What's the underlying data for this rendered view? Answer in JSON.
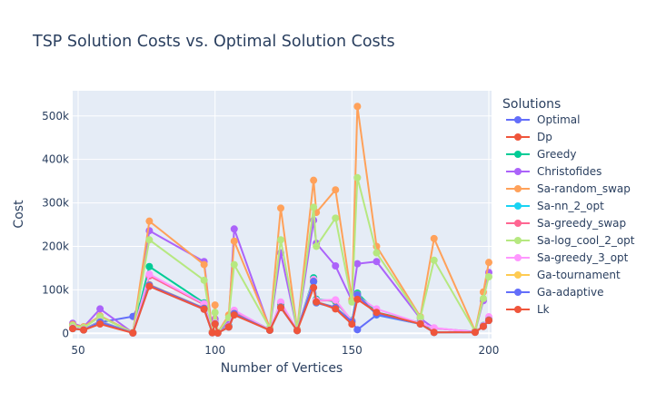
{
  "chart_data": {
    "type": "line",
    "title": "TSP Solution Costs vs. Optimal Solution Costs",
    "xlabel": "Number of Vertices",
    "ylabel": "Cost",
    "xlim": [
      48,
      201
    ],
    "ylim": [
      -12000,
      558000
    ],
    "x_ticks": [
      50,
      100,
      150,
      200
    ],
    "y_ticks": [
      0,
      100000,
      200000,
      300000,
      400000,
      500000
    ],
    "y_tick_labels": [
      "0",
      "100k",
      "200k",
      "300k",
      "400k",
      "500k"
    ],
    "grid": true,
    "legend": {
      "title": "Solutions",
      "placement": "right"
    },
    "x": [
      48,
      52,
      58,
      70,
      76,
      96,
      99,
      100,
      101,
      105,
      107,
      120,
      124,
      130,
      136,
      137,
      144,
      150,
      152,
      159,
      175,
      180,
      195,
      198,
      200
    ],
    "series": [
      {
        "name": "Optimal",
        "color": "#636efa",
        "values": [
          10628,
          7542,
          25395,
          38673,
          108159,
          55209,
          1211,
          21282,
          629,
          14379,
          44303,
          6942,
          59030,
          6110,
          118282,
          69853,
          58537,
          26130,
          8179,
          42080,
          21407,
          1950,
          2323,
          15780,
          29368
        ]
      },
      {
        "name": "Dp",
        "color": "#ef553b",
        "values": [
          null,
          null,
          null,
          null,
          null,
          null,
          null,
          null,
          null,
          null,
          null,
          null,
          null,
          null,
          null,
          null,
          null,
          null,
          null,
          null,
          null,
          null,
          null,
          null,
          null
        ]
      },
      {
        "name": "Greedy",
        "color": "#00cc96",
        "values": [
          12012,
          8982,
          27807,
          790,
          153461,
          69853,
          1400,
          25405,
          739,
          17470,
          51680,
          8218,
          66185,
          6986,
          127630,
          78412,
          73612,
          29020,
          92468,
          48106,
          24540,
          2150,
          2633,
          18010,
          33700
        ]
      },
      {
        "name": "Christofides",
        "color": "#ab63fa",
        "values": [
          23000,
          14500,
          56000,
          1200,
          236000,
          165000,
          2600,
          33000,
          1100,
          28000,
          240000,
          11500,
          185000,
          8200,
          260000,
          207000,
          155000,
          75000,
          160000,
          165000,
          34000,
          11500,
          3700,
          75000,
          140000
        ]
      },
      {
        "name": "Sa-random_swap",
        "color": "#ffa15a",
        "values": [
          20000,
          15000,
          40000,
          1700,
          258000,
          158000,
          4000,
          65000,
          1400,
          42000,
          212000,
          13000,
          288000,
          9500,
          352000,
          278000,
          330000,
          78000,
          522000,
          200000,
          38000,
          218000,
          5500,
          95000,
          163000
        ]
      },
      {
        "name": "Sa-nn_2_opt",
        "color": "#19d3f3",
        "values": [
          10700,
          7600,
          25600,
          790,
          110000,
          57000,
          1250,
          21500,
          640,
          14800,
          45000,
          7000,
          60000,
          6200,
          119000,
          71000,
          59000,
          26500,
          88000,
          43000,
          21700,
          1980,
          2400,
          16000,
          30000
        ]
      },
      {
        "name": "Sa-greedy_swap",
        "color": "#ff6692",
        "values": [
          11500,
          8300,
          26500,
          800,
          132000,
          66000,
          1320,
          23000,
          680,
          15500,
          48000,
          7500,
          71000,
          6500,
          122000,
          75000,
          76000,
          27500,
          84000,
          45500,
          22500,
          12000,
          2500,
          17000,
          32000
        ]
      },
      {
        "name": "Sa-log_cool_2_opt",
        "color": "#b6e880",
        "values": [
          18000,
          13000,
          38000,
          1500,
          215000,
          122000,
          3200,
          48000,
          1200,
          36000,
          158000,
          12000,
          215000,
          8800,
          290000,
          200000,
          265000,
          72000,
          358000,
          185000,
          36000,
          168000,
          4500,
          80000,
          130000
        ]
      },
      {
        "name": "Sa-greedy_3_opt",
        "color": "#ff97ff",
        "values": [
          12000,
          8600,
          27000,
          820,
          136000,
          68000,
          1350,
          23500,
          690,
          16000,
          53000,
          7700,
          72000,
          6700,
          124000,
          76000,
          77000,
          28000,
          85000,
          56000,
          23000,
          12500,
          2550,
          17500,
          38000
        ]
      },
      {
        "name": "Ga-tournament",
        "color": "#fecb52",
        "values": [
          11000,
          7900,
          26000,
          800,
          112000,
          58000,
          1260,
          22000,
          650,
          15000,
          46000,
          7100,
          61000,
          6300,
          120000,
          72000,
          60000,
          26800,
          89000,
          44000,
          22000,
          2000,
          2420,
          16200,
          31000
        ]
      },
      {
        "name": "Ga-adaptive",
        "color": "#636efa",
        "values": [
          10900,
          7800,
          25900,
          795,
          111000,
          57500,
          1255,
          21800,
          645,
          14900,
          45500,
          7050,
          60500,
          6250,
          119500,
          71500,
          59500,
          26600,
          88500,
          43500,
          21800,
          1990,
          2410,
          16100,
          30500
        ]
      },
      {
        "name": "Lk",
        "color": "#ef553b",
        "values": [
          10628,
          7542,
          21282,
          700,
          108159,
          55209,
          1211,
          21282,
          629,
          14379,
          42080,
          6942,
          59030,
          6110,
          105000,
          72000,
          56000,
          21000,
          78000,
          48106,
          21407,
          2020,
          2323,
          15780,
          29368
        ]
      }
    ]
  }
}
